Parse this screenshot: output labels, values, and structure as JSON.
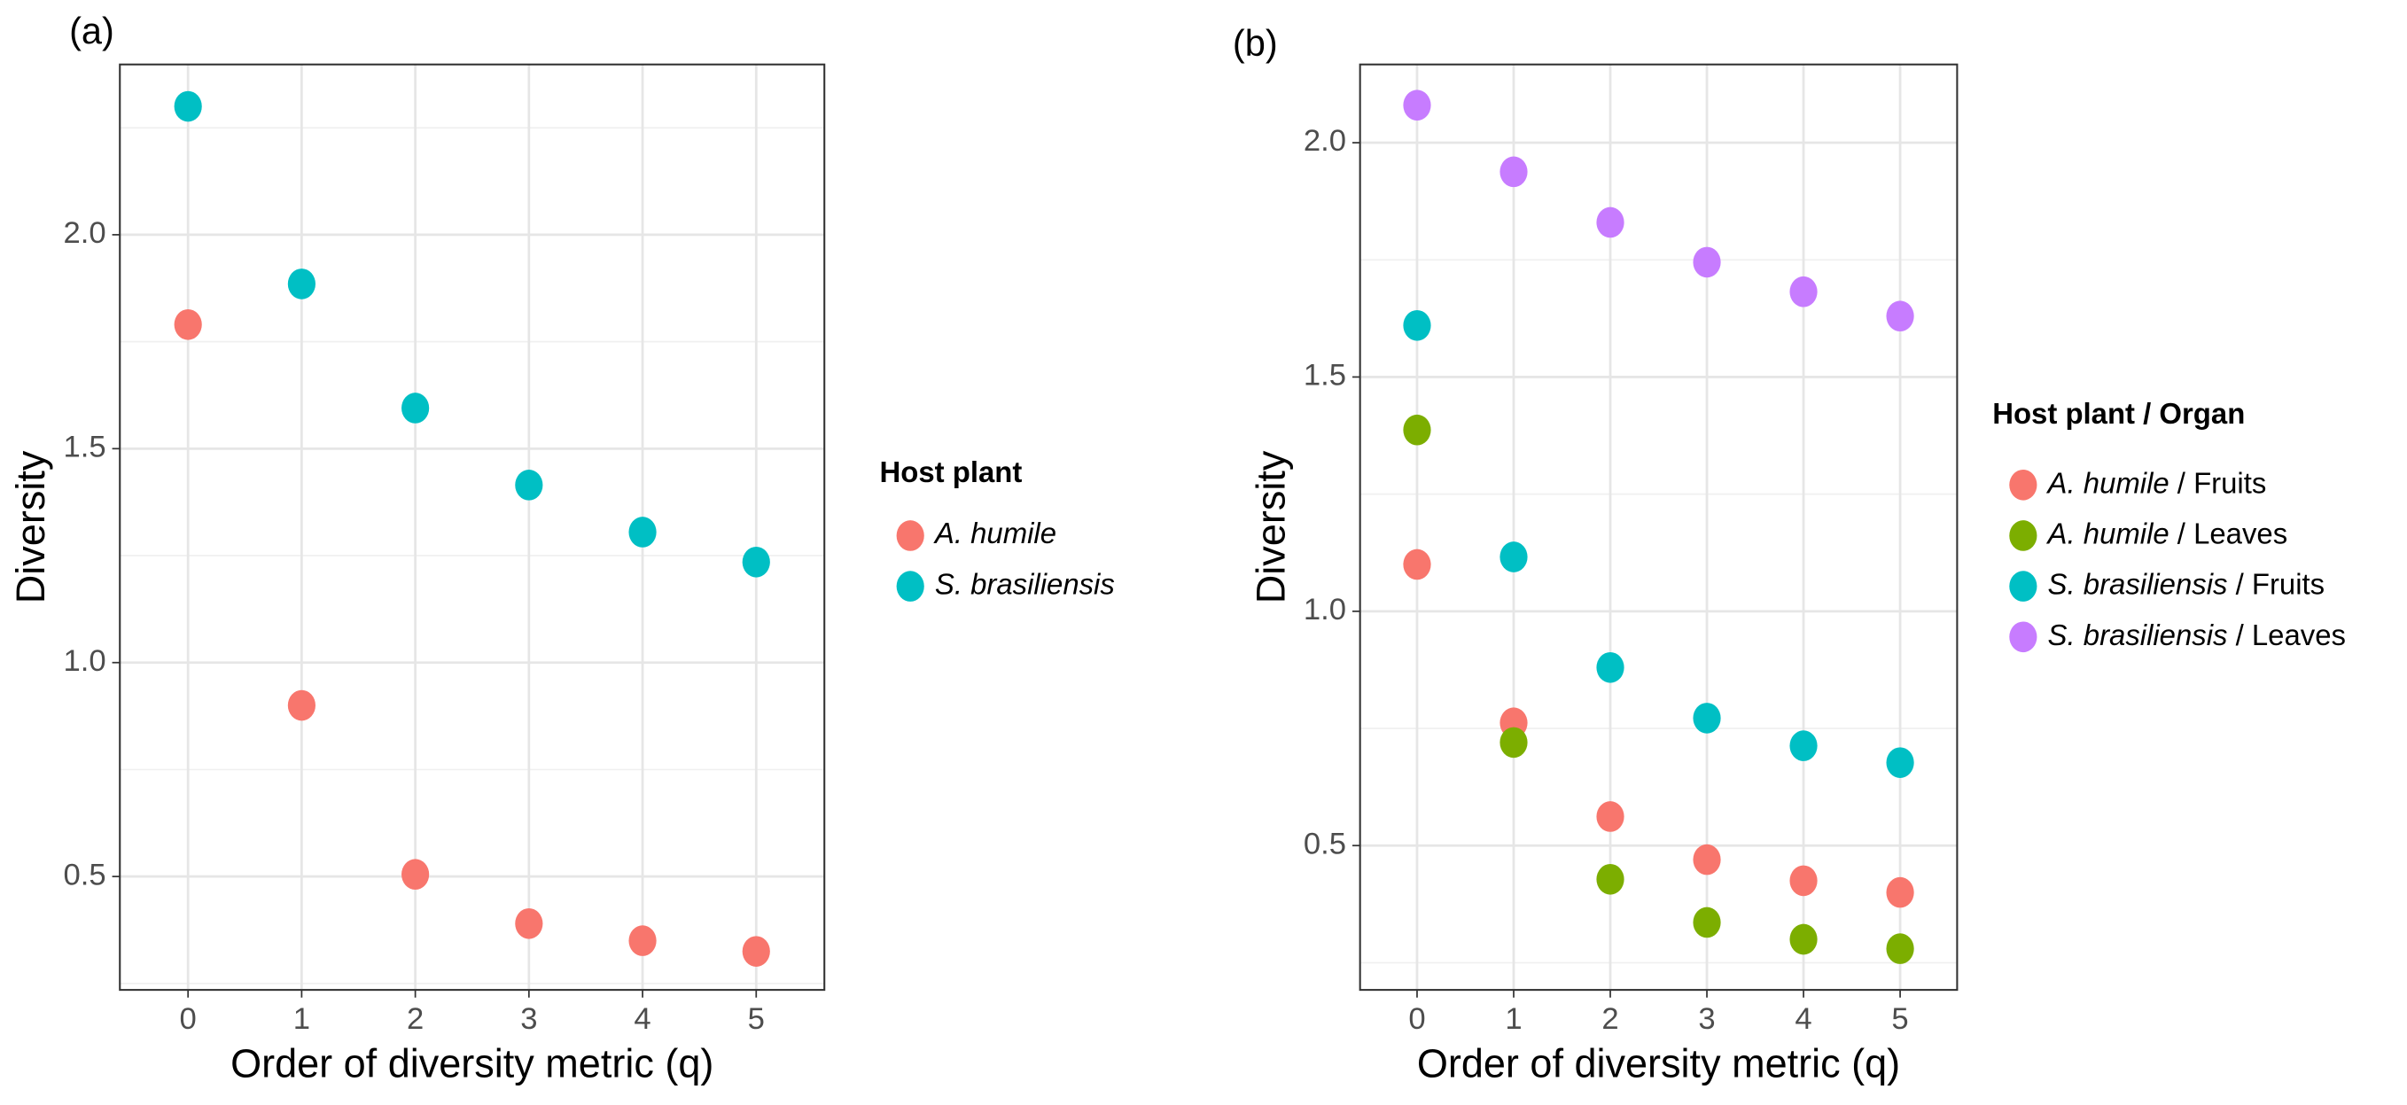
{
  "chart_data": [
    {
      "type": "scatter",
      "panel_label": "(a)",
      "x_label": "Order of diversity metric (q)",
      "y_label": "Diversity",
      "x": [
        0,
        1,
        2,
        3,
        4,
        5
      ],
      "xlim": [
        -0.6,
        5.6
      ],
      "xticks": [
        0,
        1,
        2,
        3,
        4,
        5
      ],
      "ylim": [
        0.235,
        2.398
      ],
      "yticks": [
        {
          "value": 0.5,
          "label": "0.5"
        },
        {
          "value": 1.0,
          "label": "1.0"
        },
        {
          "value": 1.5,
          "label": "1.5"
        },
        {
          "value": 2.0,
          "label": "2.0"
        }
      ],
      "grid": true,
      "legend_title": "Host plant",
      "series": [
        {
          "name": "A. humile",
          "color": "#F8766D",
          "values": [
            1.79,
            0.9,
            0.505,
            0.39,
            0.35,
            0.325
          ]
        },
        {
          "name": "S. brasiliensis",
          "color": "#00BFC4",
          "values": [
            2.3,
            1.885,
            1.595,
            1.415,
            1.305,
            1.235
          ]
        }
      ]
    },
    {
      "type": "scatter",
      "panel_label": "(b)",
      "x_label": "Order of diversity metric (q)",
      "y_label": "Diversity",
      "x": [
        0,
        1,
        2,
        3,
        4,
        5
      ],
      "xlim": [
        -0.59,
        5.59
      ],
      "xticks": [
        0,
        1,
        2,
        3,
        4,
        5
      ],
      "ylim": [
        0.192,
        2.167
      ],
      "yticks": [
        {
          "value": 0.5,
          "label": "0.5"
        },
        {
          "value": 1.0,
          "label": "1.0"
        },
        {
          "value": 1.5,
          "label": "1.5"
        },
        {
          "value": 2.0,
          "label": "2.0"
        }
      ],
      "grid": true,
      "legend_title": "Host plant / Organ",
      "series": [
        {
          "name": "A. humile / Fruits",
          "color": "#F8766D",
          "values": [
            1.1,
            0.762,
            0.562,
            0.47,
            0.425,
            0.4
          ]
        },
        {
          "name": "A. humile / Leaves",
          "color": "#7CAE00",
          "values": [
            1.387,
            0.72,
            0.428,
            0.336,
            0.3,
            0.28
          ]
        },
        {
          "name": "S. brasiliensis / Fruits",
          "color": "#00BFC4",
          "values": [
            1.61,
            1.116,
            0.88,
            0.772,
            0.713,
            0.677
          ]
        },
        {
          "name": "S. brasiliensis / Leaves",
          "color": "#C77CFF",
          "values": [
            2.08,
            1.938,
            1.83,
            1.745,
            1.682,
            1.63
          ]
        }
      ]
    }
  ]
}
